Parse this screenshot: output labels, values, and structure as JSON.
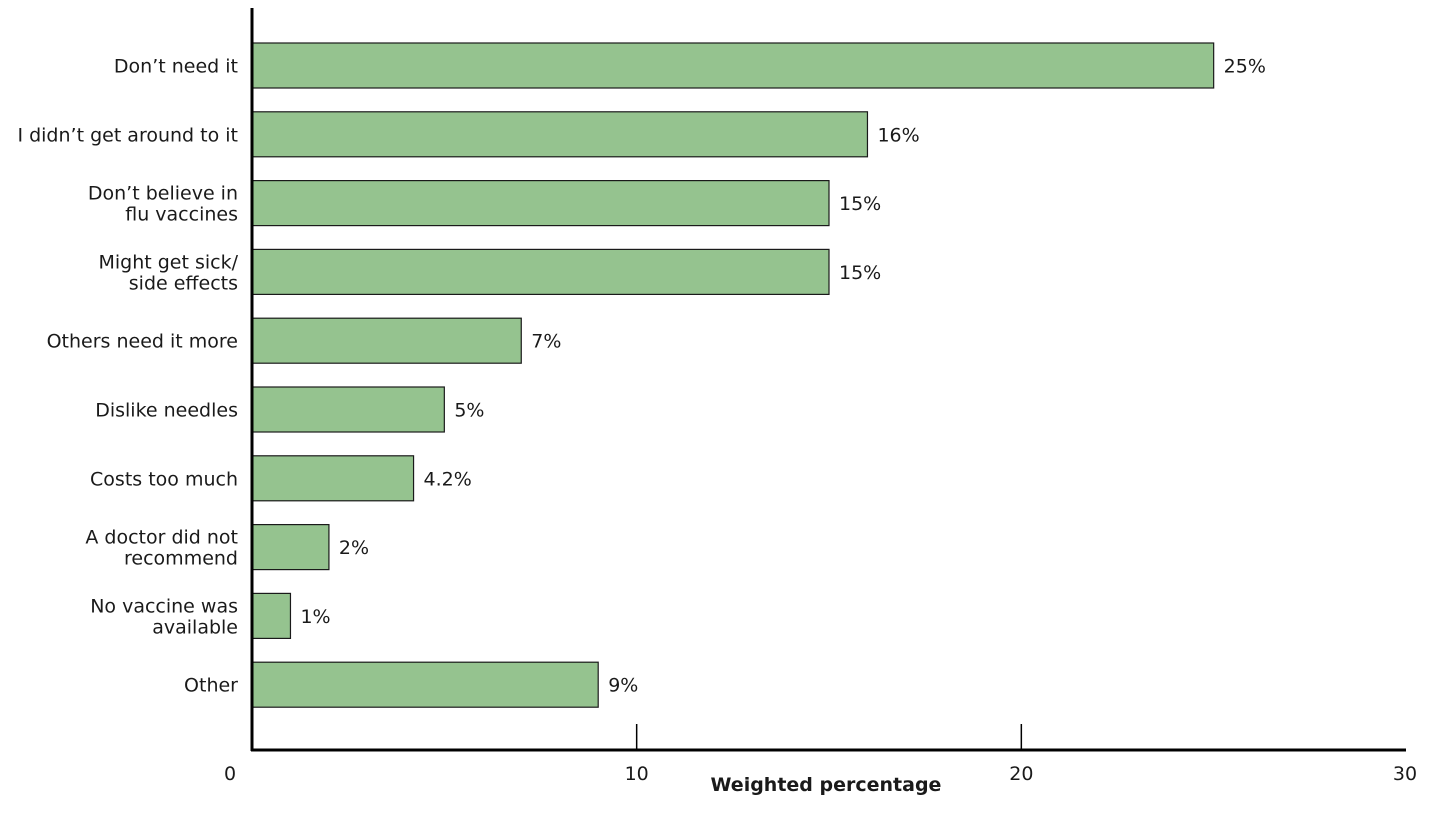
{
  "colors": {
    "bar_fill": "#95c38f",
    "bar_stroke": "#1a1a1a",
    "axis": "#000000"
  },
  "chart_data": {
    "type": "bar",
    "orientation": "horizontal",
    "categories": [
      [
        "Don’t need it"
      ],
      [
        "I didn’t get around to it"
      ],
      [
        "Don’t believe in",
        "flu vaccines"
      ],
      [
        "Might get sick/",
        "side effects"
      ],
      [
        "Others need it more"
      ],
      [
        "Dislike needles"
      ],
      [
        "Costs too much"
      ],
      [
        "A doctor did not",
        "recommend"
      ],
      [
        "No vaccine was",
        "available"
      ],
      [
        "Other"
      ]
    ],
    "values": [
      25,
      16,
      15,
      15,
      7,
      5,
      4.2,
      2,
      1,
      9
    ],
    "data_labels": [
      "25%",
      "16%",
      "15%",
      "15%",
      "7%",
      "5%",
      "4.2%",
      "2%",
      "1%",
      "9%"
    ],
    "xlabel": "Weighted percentage",
    "ylabel": "",
    "xlim": [
      0,
      30
    ],
    "xticks": [
      0,
      10,
      20,
      30
    ],
    "grid": false,
    "legend": "none"
  }
}
